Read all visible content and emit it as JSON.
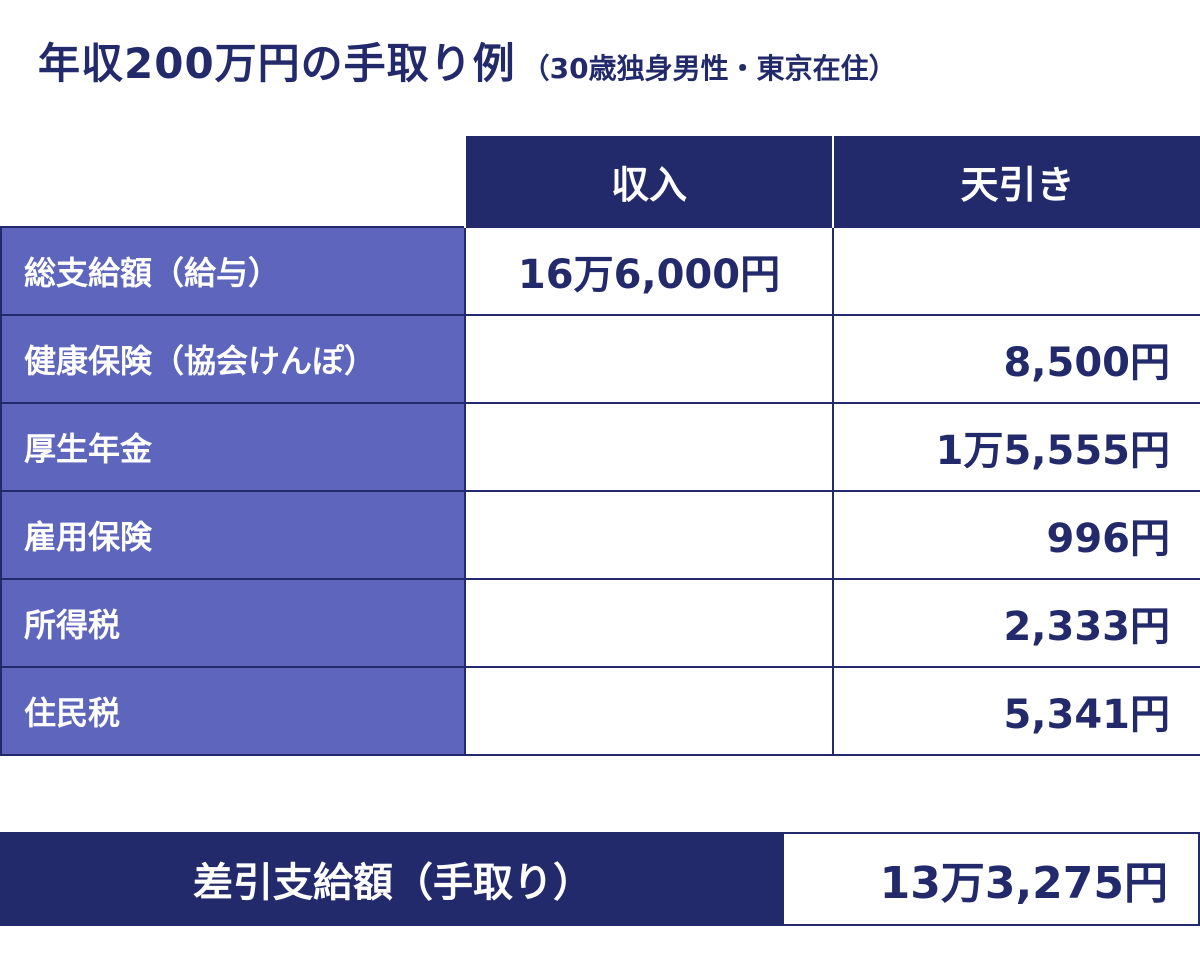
{
  "title": {
    "main": "年収200万円の手取り例",
    "sub": "（30歳独身男性・東京在住）"
  },
  "table": {
    "headers": [
      "収入",
      "天引き"
    ],
    "rows": [
      {
        "label": "総支給額（給与）",
        "income": "16万6,000円",
        "deduction": ""
      },
      {
        "label": "健康保険（協会けんぽ）",
        "income": "",
        "deduction": "8,500円"
      },
      {
        "label": "厚生年金",
        "income": "",
        "deduction": "1万5,555円"
      },
      {
        "label": "雇用保険",
        "income": "",
        "deduction": "996円"
      },
      {
        "label": "所得税",
        "income": "",
        "deduction": "2,333円"
      },
      {
        "label": "住民税",
        "income": "",
        "deduction": "5,341円"
      }
    ]
  },
  "total": {
    "label": "差引支給額（手取り）",
    "value": "13万3,275円"
  },
  "colors": {
    "navy": "#232a6c",
    "label_bg": "#5e65bd",
    "background": "#ffffff"
  }
}
